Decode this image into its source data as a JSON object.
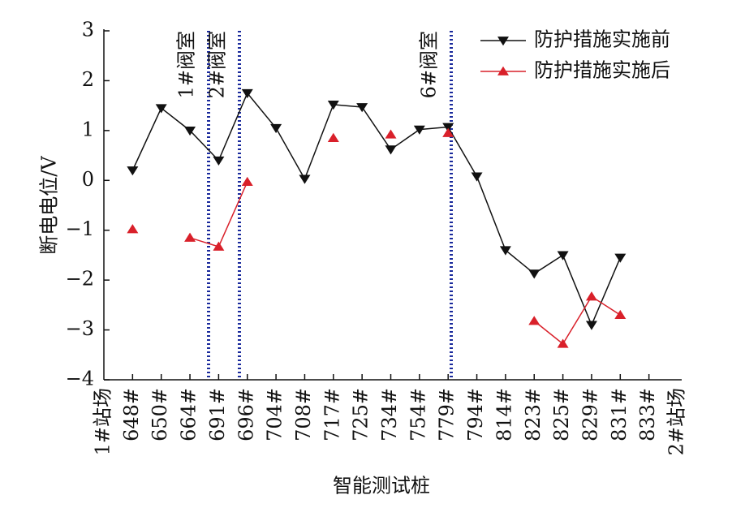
{
  "chart_data": {
    "type": "line",
    "x_label": "智能测试桩",
    "y_label": "断电电位/V",
    "categories": [
      "1#站场",
      "648#",
      "650#",
      "664#",
      "691#",
      "696#",
      "704#",
      "708#",
      "717#",
      "725#",
      "734#",
      "754#",
      "779#",
      "794#",
      "814#",
      "823#",
      "825#",
      "829#",
      "831#",
      "833#",
      "2#站场"
    ],
    "series": [
      {
        "name": "防护措施实施前",
        "color": "#111111",
        "marker": "triangle-down",
        "values": [
          null,
          0.2,
          1.45,
          1.0,
          0.4,
          1.75,
          1.05,
          0.03,
          1.52,
          1.47,
          0.62,
          1.02,
          1.07,
          0.08,
          -1.4,
          -1.87,
          -1.5,
          -2.9,
          -1.55,
          null,
          null
        ]
      },
      {
        "name": "防护措施实施后",
        "color": "#d9202a",
        "marker": "triangle-up",
        "values": [
          null,
          -0.98,
          null,
          -1.15,
          -1.33,
          -0.03,
          null,
          null,
          0.85,
          null,
          0.92,
          null,
          0.95,
          null,
          null,
          -2.82,
          -3.28,
          -2.33,
          -2.7,
          null,
          null
        ]
      }
    ],
    "annotations": [
      "1#阀室",
      "2#阀室",
      "6#阀室"
    ],
    "ylim": [
      -4,
      3
    ],
    "yticks": [
      {
        "value": -4,
        "label": "−4"
      },
      {
        "value": -3,
        "label": "−3"
      },
      {
        "value": -2,
        "label": "−2"
      },
      {
        "value": -1,
        "label": "−1"
      },
      0,
      1,
      2,
      3
    ],
    "legend": "upper right",
    "grid": false
  }
}
